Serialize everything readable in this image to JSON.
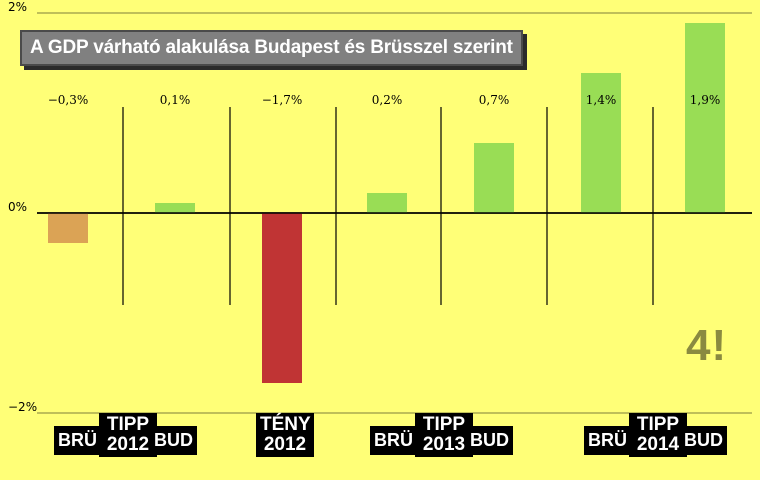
{
  "title": "A GDP várható alakulása Budapest és Brüsszel szerint",
  "colors": {
    "background": "#ffff77",
    "bru": "#dba355",
    "teny": "#c03434",
    "bud": "#99dd55"
  },
  "chart_data": {
    "type": "bar",
    "title": "A GDP várható alakulása Budapest és Brüsszel szerint",
    "ylim": [
      -2,
      2
    ],
    "yticks": [
      "2%",
      "0%",
      "−2%"
    ],
    "grid": true,
    "categories": [
      "BRÜ 2012",
      "BUD 2012",
      "TÉNY 2012",
      "BRÜ 2013",
      "BUD 2013",
      "BRÜ 2014",
      "BUD 2014"
    ],
    "values": [
      -0.3,
      0.1,
      -1.7,
      0.2,
      0.7,
      1.4,
      1.9
    ],
    "value_labels": [
      "−0,3%",
      "0,1%",
      "−1,7%",
      "0,2%",
      "0,7%",
      "1,4%",
      "1,9%"
    ],
    "bar_colors": [
      "#dba355",
      "#99dd55",
      "#c03434",
      "#99dd55",
      "#99dd55",
      "#99dd55",
      "#99dd55"
    ]
  },
  "groups": [
    {
      "left": "BRÜ",
      "mid": "TIPP\n2012",
      "right": "BUD"
    },
    {
      "mid": "TÉNY\n2012"
    },
    {
      "left": "BRÜ",
      "mid": "TIPP\n2013",
      "right": "BUD"
    },
    {
      "left": "BRÜ",
      "mid": "TIPP\n2014",
      "right": "BUD"
    }
  ],
  "logo_text": "4!"
}
